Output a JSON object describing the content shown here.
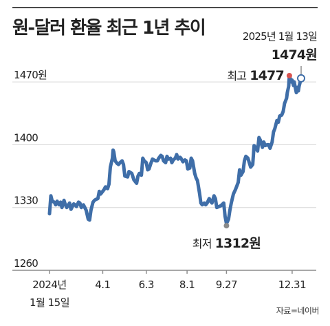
{
  "chart_data": {
    "type": "line",
    "title": "원-달러 환율 최근 1년 추이",
    "source": "자료=네이버",
    "colors": {
      "line": "#3f6ea8",
      "high_marker": "#d9534f",
      "low_marker": "#8a8a8a",
      "latest_marker": "#3f6ea8"
    },
    "grid": true,
    "ylim": [
      1260,
      1490
    ],
    "yticks": [
      {
        "value": 1470,
        "label": "1470원"
      },
      {
        "value": 1400,
        "label": "1400"
      },
      {
        "value": 1330,
        "label": "1330"
      },
      {
        "value": 1260,
        "label": "1260"
      }
    ],
    "xlim": [
      "2024-01-15",
      "2025-01-13"
    ],
    "xticks": [
      {
        "date": "2024-01-15",
        "label": "2024년",
        "label2": "1월 15일"
      },
      {
        "date": "2024-04-01",
        "label": "4.1"
      },
      {
        "date": "2024-06-03",
        "label": "6.3"
      },
      {
        "date": "2024-08-01",
        "label": "8.1"
      },
      {
        "date": "2024-09-27",
        "label": "9.27"
      },
      {
        "date": "2024-12-31",
        "label": "12.31"
      }
    ],
    "series": [
      {
        "points": [
          [
            "2024-01-15",
            1323
          ],
          [
            "2024-01-17",
            1343
          ],
          [
            "2024-01-19",
            1337
          ],
          [
            "2024-01-22",
            1336
          ],
          [
            "2024-01-24",
            1333
          ],
          [
            "2024-01-26",
            1337
          ],
          [
            "2024-01-29",
            1333
          ],
          [
            "2024-01-31",
            1336
          ],
          [
            "2024-02-02",
            1330
          ],
          [
            "2024-02-05",
            1338
          ],
          [
            "2024-02-07",
            1333
          ],
          [
            "2024-02-09",
            1330
          ],
          [
            "2024-02-13",
            1335
          ],
          [
            "2024-02-15",
            1328
          ],
          [
            "2024-02-19",
            1334
          ],
          [
            "2024-02-21",
            1333
          ],
          [
            "2024-02-23",
            1331
          ],
          [
            "2024-02-26",
            1336
          ],
          [
            "2024-02-28",
            1335
          ],
          [
            "2024-03-01",
            1330
          ],
          [
            "2024-03-04",
            1333
          ],
          [
            "2024-03-06",
            1330
          ],
          [
            "2024-03-08",
            1327
          ],
          [
            "2024-03-11",
            1317
          ],
          [
            "2024-03-13",
            1316
          ],
          [
            "2024-03-15",
            1327
          ],
          [
            "2024-03-18",
            1336
          ],
          [
            "2024-03-20",
            1338
          ],
          [
            "2024-03-22",
            1339
          ],
          [
            "2024-03-25",
            1340
          ],
          [
            "2024-03-27",
            1348
          ],
          [
            "2024-03-29",
            1345
          ],
          [
            "2024-04-01",
            1348
          ],
          [
            "2024-04-03",
            1350
          ],
          [
            "2024-04-05",
            1353
          ],
          [
            "2024-04-08",
            1351
          ],
          [
            "2024-04-10",
            1356
          ],
          [
            "2024-04-12",
            1375
          ],
          [
            "2024-04-15",
            1385
          ],
          [
            "2024-04-16",
            1394
          ],
          [
            "2024-04-17",
            1392
          ],
          [
            "2024-04-19",
            1382
          ],
          [
            "2024-04-22",
            1379
          ],
          [
            "2024-04-24",
            1378
          ],
          [
            "2024-04-26",
            1380
          ],
          [
            "2024-04-29",
            1382
          ],
          [
            "2024-05-01",
            1378
          ],
          [
            "2024-05-03",
            1365
          ],
          [
            "2024-05-07",
            1364
          ],
          [
            "2024-05-09",
            1370
          ],
          [
            "2024-05-13",
            1368
          ],
          [
            "2024-05-16",
            1361
          ],
          [
            "2024-05-20",
            1357
          ],
          [
            "2024-05-22",
            1365
          ],
          [
            "2024-05-24",
            1368
          ],
          [
            "2024-05-27",
            1366
          ],
          [
            "2024-05-29",
            1385
          ],
          [
            "2024-05-31",
            1382
          ],
          [
            "2024-06-03",
            1380
          ],
          [
            "2024-06-05",
            1372
          ],
          [
            "2024-06-07",
            1373
          ],
          [
            "2024-06-10",
            1380
          ],
          [
            "2024-06-12",
            1384
          ],
          [
            "2024-06-14",
            1383
          ],
          [
            "2024-06-17",
            1382
          ],
          [
            "2024-06-19",
            1382
          ],
          [
            "2024-06-21",
            1385
          ],
          [
            "2024-06-24",
            1388
          ],
          [
            "2024-06-26",
            1387
          ],
          [
            "2024-06-28",
            1382
          ],
          [
            "2024-07-01",
            1380
          ],
          [
            "2024-07-03",
            1387
          ],
          [
            "2024-07-05",
            1384
          ],
          [
            "2024-07-08",
            1385
          ],
          [
            "2024-07-10",
            1380
          ],
          [
            "2024-07-12",
            1383
          ],
          [
            "2024-07-15",
            1385
          ],
          [
            "2024-07-17",
            1389
          ],
          [
            "2024-07-19",
            1384
          ],
          [
            "2024-07-22",
            1386
          ],
          [
            "2024-07-24",
            1384
          ],
          [
            "2024-07-26",
            1381
          ],
          [
            "2024-07-29",
            1383
          ],
          [
            "2024-07-31",
            1382
          ],
          [
            "2024-08-02",
            1373
          ],
          [
            "2024-08-05",
            1374
          ],
          [
            "2024-08-07",
            1385
          ],
          [
            "2024-08-09",
            1382
          ],
          [
            "2024-08-12",
            1368
          ],
          [
            "2024-08-14",
            1363
          ],
          [
            "2024-08-16",
            1360
          ],
          [
            "2024-08-19",
            1346
          ],
          [
            "2024-08-21",
            1335
          ],
          [
            "2024-08-23",
            1333
          ],
          [
            "2024-08-26",
            1335
          ],
          [
            "2024-08-28",
            1333
          ],
          [
            "2024-08-30",
            1335
          ],
          [
            "2024-09-02",
            1340
          ],
          [
            "2024-09-04",
            1337
          ],
          [
            "2024-09-06",
            1335
          ],
          [
            "2024-09-09",
            1343
          ],
          [
            "2024-09-11",
            1340
          ],
          [
            "2024-09-13",
            1330
          ],
          [
            "2024-09-19",
            1332
          ],
          [
            "2024-09-23",
            1335
          ],
          [
            "2024-09-25",
            1320
          ],
          [
            "2024-09-27",
            1312
          ],
          [
            "2024-09-30",
            1317
          ],
          [
            "2024-10-02",
            1327
          ],
          [
            "2024-10-04",
            1335
          ],
          [
            "2024-10-07",
            1345
          ],
          [
            "2024-10-10",
            1350
          ],
          [
            "2024-10-14",
            1358
          ],
          [
            "2024-10-16",
            1372
          ],
          [
            "2024-10-18",
            1366
          ],
          [
            "2024-10-21",
            1370
          ],
          [
            "2024-10-23",
            1382
          ],
          [
            "2024-10-25",
            1387
          ],
          [
            "2024-10-28",
            1385
          ],
          [
            "2024-10-30",
            1380
          ],
          [
            "2024-11-01",
            1375
          ],
          [
            "2024-11-04",
            1378
          ],
          [
            "2024-11-06",
            1399
          ],
          [
            "2024-11-08",
            1397
          ],
          [
            "2024-11-11",
            1393
          ],
          [
            "2024-11-13",
            1408
          ],
          [
            "2024-11-15",
            1405
          ],
          [
            "2024-11-18",
            1397
          ],
          [
            "2024-11-20",
            1403
          ],
          [
            "2024-11-22",
            1399
          ],
          [
            "2024-11-25",
            1400
          ],
          [
            "2024-11-27",
            1400
          ],
          [
            "2024-11-29",
            1396
          ],
          [
            "2024-12-02",
            1403
          ],
          [
            "2024-12-04",
            1414
          ],
          [
            "2024-12-06",
            1418
          ],
          [
            "2024-12-09",
            1427
          ],
          [
            "2024-12-11",
            1425
          ],
          [
            "2024-12-13",
            1432
          ],
          [
            "2024-12-16",
            1433
          ],
          [
            "2024-12-18",
            1437
          ],
          [
            "2024-12-20",
            1446
          ],
          [
            "2024-12-23",
            1452
          ],
          [
            "2024-12-24",
            1458
          ],
          [
            "2024-12-26",
            1465
          ],
          [
            "2024-12-27",
            1477
          ],
          [
            "2024-12-30",
            1470
          ],
          [
            "2024-12-31",
            1472
          ],
          [
            "2025-01-02",
            1466
          ],
          [
            "2025-01-03",
            1470
          ],
          [
            "2025-01-06",
            1458
          ],
          [
            "2025-01-07",
            1462
          ],
          [
            "2025-01-08",
            1464
          ],
          [
            "2025-01-09",
            1460
          ],
          [
            "2025-01-10",
            1465
          ],
          [
            "2025-01-13",
            1474
          ]
        ]
      }
    ],
    "annotations": {
      "high": {
        "date": "2024-12-27",
        "value": 1477,
        "prefix": "최고",
        "label": "1477"
      },
      "low": {
        "date": "2024-09-27",
        "value": 1312,
        "prefix": "최저",
        "label": "1312원"
      },
      "latest": {
        "date": "2025-01-13",
        "value": 1474,
        "date_label": "2025년 1월 13일",
        "label": "1474원"
      }
    }
  }
}
